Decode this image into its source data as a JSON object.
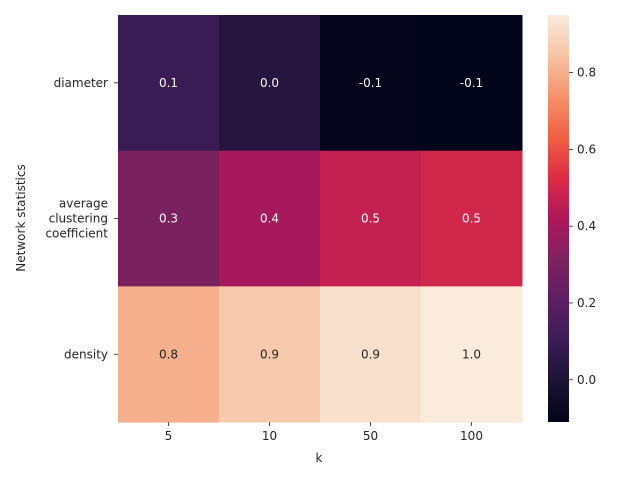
{
  "chart_data": {
    "type": "heatmap",
    "xlabel": "k",
    "ylabel": "Network statistics",
    "x_categories": [
      "5",
      "10",
      "50",
      "100"
    ],
    "y_categories": [
      [
        "diameter"
      ],
      [
        "average",
        "clustering",
        "coefficient"
      ],
      [
        "density"
      ]
    ],
    "values": [
      [
        0.1,
        0.03,
        -0.1,
        -0.11
      ],
      [
        0.3,
        0.4,
        0.47,
        0.5
      ],
      [
        0.8,
        0.86,
        0.92,
        0.95
      ]
    ],
    "cell_labels": [
      [
        "0.1",
        "0.0",
        "-0.1",
        "-0.1"
      ],
      [
        "0.3",
        "0.4",
        "0.5",
        "0.5"
      ],
      [
        "0.8",
        "0.9",
        "0.9",
        "1.0"
      ]
    ],
    "colorbar": {
      "vmin": -0.11,
      "vmax": 0.95,
      "ticks": [
        0.0,
        0.2,
        0.4,
        0.6,
        0.8
      ],
      "tick_labels": [
        "0.0",
        "0.2",
        "0.4",
        "0.6",
        "0.8"
      ]
    },
    "colormap": "rocket",
    "grid": false
  }
}
